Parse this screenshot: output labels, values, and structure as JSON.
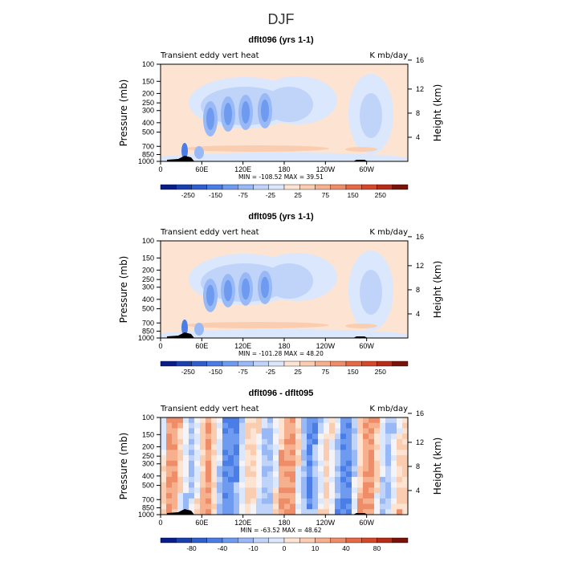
{
  "figure": {
    "title": "DJF"
  },
  "chart_data": [
    {
      "type": "heatmap",
      "title": "dflt096 (yrs 1-1)",
      "left_label": "Transient eddy vert heat",
      "right_label": "K mb/day",
      "ylabel": "Pressure (mb)",
      "ylabel_right": "Height (km)",
      "x_ticks": [
        "0",
        "60E",
        "120E",
        "180",
        "120W",
        "60W"
      ],
      "y_ticks": [
        "100",
        "150",
        "200",
        "250",
        "300",
        "400",
        "500",
        "700",
        "850",
        "1000"
      ],
      "height_ticks": [
        "16",
        "12",
        "8",
        "4"
      ],
      "stats": "MIN = -108.52   MAX =  39.51",
      "colorbar_labels": [
        "-250",
        "-150",
        "-75",
        "-25",
        "25",
        "75",
        "150",
        "250"
      ],
      "colorbar_colors": [
        "#081d8a",
        "#1a40b0",
        "#2f5fcf",
        "#4a7ee6",
        "#6e9af0",
        "#98b8f6",
        "#c0d4fa",
        "#dbe7fc",
        "#fde4d2",
        "#fbcdb0",
        "#f6b08e",
        "#ef8d68",
        "#e56a45",
        "#d6482a",
        "#b62c18",
        "#7a1208"
      ],
      "pressure_range": [
        1000,
        100
      ],
      "field": "dflt096"
    },
    {
      "type": "heatmap",
      "title": "dflt095 (yrs 1-1)",
      "left_label": "Transient eddy vert heat",
      "right_label": "K mb/day",
      "ylabel": "Pressure (mb)",
      "ylabel_right": "Height (km)",
      "x_ticks": [
        "0",
        "60E",
        "120E",
        "180",
        "120W",
        "60W"
      ],
      "y_ticks": [
        "100",
        "150",
        "200",
        "250",
        "300",
        "400",
        "500",
        "700",
        "850",
        "1000"
      ],
      "height_ticks": [
        "16",
        "12",
        "8",
        "4"
      ],
      "stats": "MIN = -101.28   MAX =  48.20",
      "colorbar_labels": [
        "-250",
        "-150",
        "-75",
        "-25",
        "25",
        "75",
        "150",
        "250"
      ],
      "colorbar_colors": [
        "#081d8a",
        "#1a40b0",
        "#2f5fcf",
        "#4a7ee6",
        "#6e9af0",
        "#98b8f6",
        "#c0d4fa",
        "#dbe7fc",
        "#fde4d2",
        "#fbcdb0",
        "#f6b08e",
        "#ef8d68",
        "#e56a45",
        "#d6482a",
        "#b62c18",
        "#7a1208"
      ],
      "pressure_range": [
        1000,
        100
      ],
      "field": "dflt095"
    },
    {
      "type": "heatmap",
      "title": "dflt096 - dflt095",
      "left_label": "Transient eddy vert heat",
      "right_label": "K mb/day",
      "ylabel": "Pressure (mb)",
      "ylabel_right": "Height (km)",
      "x_ticks": [
        "0",
        "60E",
        "120E",
        "180",
        "120W",
        "60W"
      ],
      "y_ticks": [
        "100",
        "150",
        "200",
        "250",
        "300",
        "400",
        "500",
        "700",
        "850",
        "1000"
      ],
      "height_ticks": [
        "16",
        "12",
        "8",
        "4"
      ],
      "stats": "MIN = -63.52   MAX =  48.62",
      "colorbar_labels": [
        "-80",
        "-40",
        "-10",
        "0",
        "10",
        "40",
        "80"
      ],
      "colorbar_colors": [
        "#081d8a",
        "#1a40b0",
        "#2f5fcf",
        "#4a7ee6",
        "#6e9af0",
        "#98b8f6",
        "#c0d4fa",
        "#dbe7fc",
        "#fde4d2",
        "#fbcdb0",
        "#f6b08e",
        "#ef8d68",
        "#e56a45",
        "#d6482a",
        "#b62c18",
        "#7a1208"
      ],
      "pressure_range": [
        1000,
        100
      ],
      "field": "diff"
    }
  ]
}
